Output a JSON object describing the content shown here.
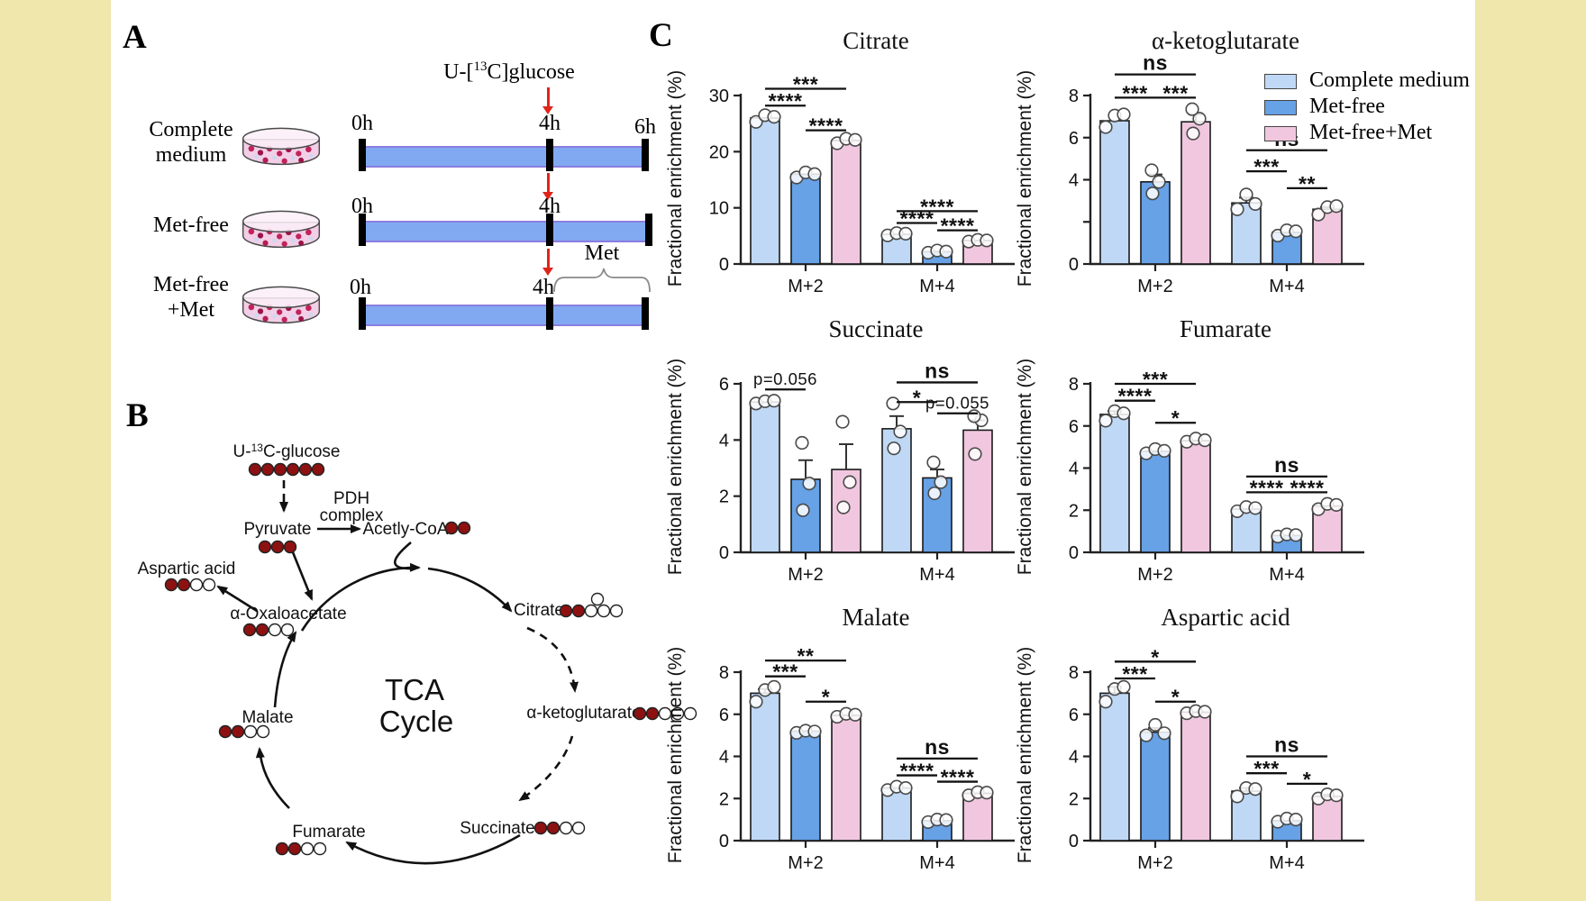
{
  "panels": {
    "a": "A",
    "b": "B",
    "c": "C"
  },
  "colors": {
    "side_band": "#efe7ab",
    "timeline_blue": "#80a9f2",
    "arrow_red": "#e0241b",
    "pdh_orange": "#e87a4d",
    "carbon_labeled": "#8e1111",
    "carbon_unlabeled": "#ffffff",
    "series": [
      "#bfd8f5",
      "#67a1e6",
      "#f1c7df"
    ]
  },
  "panel_a": {
    "glucose": {
      "pre": "U-[",
      "sup": "13",
      "post": "C]glucose"
    },
    "met_bracket_label": "Met",
    "rows": [
      {
        "line1": "Complete",
        "line2": "medium",
        "tick0": "0h",
        "tick1": "4h",
        "tick2": "6h"
      },
      {
        "line1": "Met-free",
        "line2": "",
        "tick0": "0h",
        "tick1": "4h",
        "tick2": ""
      },
      {
        "line1": "Met-free",
        "line2": "+Met",
        "tick0": "0h",
        "tick1": "4h",
        "tick2": ""
      }
    ]
  },
  "panel_b": {
    "glucose": {
      "pre": "U-",
      "sup": "13",
      "post": "C-glucose"
    },
    "pdh_line1": "PDH",
    "pdh_line2": "complex",
    "center_line1": "TCA",
    "center_line2": "Cycle",
    "nodes": {
      "pyruvate": "Pyruvate",
      "acetyl": "Acetly-CoA",
      "aspartate": "Aspartic acid",
      "oaa": "α-Oxaloacetate",
      "malate": "Malate",
      "fumarate": "Fumarate",
      "succinate": "Succinate",
      "akg": "α-ketoglutarate",
      "citrate": "Citrate"
    },
    "carbons": {
      "glucose": [
        1,
        1,
        1,
        1,
        1,
        1
      ],
      "pyruvate": [
        1,
        1,
        1
      ],
      "acetyl": [
        1,
        1
      ],
      "aspartate": [
        1,
        1,
        0,
        0
      ],
      "oaa": [
        1,
        1,
        0,
        0
      ],
      "malate": [
        1,
        1,
        0,
        0
      ],
      "fumarate": [
        1,
        1,
        0,
        0
      ],
      "succinate": [
        1,
        1,
        0,
        0
      ],
      "akg": [
        1,
        1,
        0,
        0,
        0
      ],
      "citrate": [
        1,
        1,
        0,
        0,
        0,
        0
      ]
    }
  },
  "legend": {
    "items": [
      {
        "label": "Complete medium",
        "color": "#bfd8f5"
      },
      {
        "label": "Met-free",
        "color": "#67a1e6"
      },
      {
        "label": "Met-free+Met",
        "color": "#f1c7df"
      }
    ]
  },
  "chart_data": [
    {
      "id": "citrate",
      "type": "bar",
      "title": "Citrate",
      "ylabel": "Fractional enrichment (%)",
      "ymax": 30,
      "yticks": [
        {
          "v": 0,
          "label": "0"
        },
        {
          "v": 10,
          "label": "10"
        },
        {
          "v": 20,
          "label": "20"
        },
        {
          "v": 30,
          "label": "30"
        }
      ],
      "series_names": [
        "Complete medium",
        "Met-free",
        "Met-free+Met"
      ],
      "groups": [
        {
          "label": "M+2",
          "values": [
            26.0,
            16.0,
            22.0
          ],
          "errs": [
            0,
            0,
            0
          ],
          "points": [
            [
              25.3,
              26.5,
              26.2
            ],
            [
              15.4,
              16.3,
              16.0
            ],
            [
              21.5,
              22.3,
              22.1
            ]
          ],
          "sig": [
            {
              "a": 0,
              "b": 1,
              "y": 28.2,
              "label": "****"
            },
            {
              "a": 0,
              "b": 2,
              "y": 31.2,
              "label": "***"
            },
            {
              "a": 1,
              "b": 2,
              "y": 23.8,
              "label": "****"
            }
          ]
        },
        {
          "label": "M+4",
          "values": [
            5.3,
            2.2,
            4.2
          ],
          "errs": [
            0,
            0,
            0
          ],
          "points": [
            [
              5.1,
              5.5,
              5.4
            ],
            [
              2.0,
              2.4,
              2.2
            ],
            [
              4.0,
              4.3,
              4.2
            ]
          ],
          "sig": [
            {
              "a": 0,
              "b": 1,
              "y": 7.3,
              "label": "****"
            },
            {
              "a": 0,
              "b": 2,
              "y": 9.4,
              "label": "****"
            },
            {
              "a": 1,
              "b": 2,
              "y": 6.0,
              "label": "****"
            }
          ]
        }
      ]
    },
    {
      "id": "akg",
      "type": "bar",
      "title": "α-ketoglutarate",
      "ylabel": "Fractional enrichment (%)",
      "ymax": 8,
      "yticks": [
        {
          "v": 0,
          "label": "0"
        },
        {
          "v": 2,
          "label": ""
        },
        {
          "v": 4,
          "label": "4"
        },
        {
          "v": 6,
          "label": "6"
        },
        {
          "v": 8,
          "label": "8"
        }
      ],
      "series_names": [
        "Complete medium",
        "Met-free",
        "Met-free+Met"
      ],
      "groups": [
        {
          "label": "M+2",
          "values": [
            6.8,
            3.9,
            6.75
          ],
          "errs": [
            0,
            0.35,
            0.35
          ],
          "points": [
            [
              6.5,
              7.05,
              7.1
            ],
            [
              3.35,
              3.9,
              4.45
            ],
            [
              6.2,
              6.9,
              7.35
            ]
          ],
          "sig": [
            {
              "a": 0,
              "b": 1,
              "y": 7.9,
              "label": "***"
            },
            {
              "a": 0,
              "b": 2,
              "y": 9.0,
              "label": "ns"
            },
            {
              "a": 1,
              "b": 2,
              "y": 7.9,
              "label": "***"
            }
          ]
        },
        {
          "label": "M+4",
          "values": [
            2.9,
            1.5,
            2.6
          ],
          "errs": [
            0.25,
            0,
            0.1
          ],
          "points": [
            [
              2.6,
              3.3,
              2.85
            ],
            [
              1.35,
              1.6,
              1.55
            ],
            [
              2.35,
              2.7,
              2.75
            ]
          ],
          "sig": [
            {
              "a": 0,
              "b": 1,
              "y": 4.4,
              "label": "***"
            },
            {
              "a": 0,
              "b": 2,
              "y": 5.4,
              "label": "ns"
            },
            {
              "a": 1,
              "b": 2,
              "y": 3.6,
              "label": "**"
            }
          ]
        }
      ]
    },
    {
      "id": "succinate",
      "type": "bar",
      "title": "Succinate",
      "ylabel": "Fractional enrichment (%)",
      "ymax": 6,
      "yticks": [
        {
          "v": 0,
          "label": "0"
        },
        {
          "v": 2,
          "label": "2"
        },
        {
          "v": 4,
          "label": "4"
        },
        {
          "v": 6,
          "label": "6"
        }
      ],
      "series_names": [
        "Complete medium",
        "Met-free",
        "Met-free+Met"
      ],
      "groups": [
        {
          "label": "M+2",
          "values": [
            5.35,
            2.6,
            2.95
          ],
          "errs": [
            0,
            0.68,
            0.9
          ],
          "points": [
            [
              5.3,
              5.38,
              5.4
            ],
            [
              1.5,
              2.45,
              3.9
            ],
            [
              1.6,
              2.5,
              4.65
            ]
          ],
          "sig": [
            {
              "a": 0,
              "b": 1,
              "y": 5.8,
              "label": "p=0.056"
            }
          ]
        },
        {
          "label": "M+4",
          "values": [
            4.4,
            2.65,
            4.35
          ],
          "errs": [
            0.45,
            0.3,
            0.35
          ],
          "points": [
            [
              3.7,
              4.3,
              5.3
            ],
            [
              2.1,
              2.5,
              3.2
            ],
            [
              3.5,
              4.7,
              4.85
            ]
          ],
          "sig": [
            {
              "a": 0,
              "b": 1,
              "y": 5.35,
              "label": "*"
            },
            {
              "a": 0,
              "b": 2,
              "y": 6.05,
              "label": "ns"
            },
            {
              "a": 1,
              "b": 2,
              "y": 4.95,
              "label": "p=0.055"
            }
          ]
        }
      ]
    },
    {
      "id": "fumarate",
      "type": "bar",
      "title": "Fumarate",
      "ylabel": "Fractional enrichment (%)",
      "ymax": 8,
      "yticks": [
        {
          "v": 0,
          "label": "0"
        },
        {
          "v": 2,
          "label": "2"
        },
        {
          "v": 4,
          "label": "4"
        },
        {
          "v": 6,
          "label": "6"
        },
        {
          "v": 8,
          "label": "8"
        }
      ],
      "series_names": [
        "Complete medium",
        "Met-free",
        "Met-free+Met"
      ],
      "groups": [
        {
          "label": "M+2",
          "values": [
            6.55,
            4.8,
            5.3
          ],
          "errs": [
            0.15,
            0,
            0
          ],
          "points": [
            [
              6.25,
              6.7,
              6.6
            ],
            [
              4.7,
              4.9,
              4.82
            ],
            [
              5.25,
              5.4,
              5.32
            ]
          ],
          "sig": [
            {
              "a": 0,
              "b": 1,
              "y": 7.2,
              "label": "****"
            },
            {
              "a": 0,
              "b": 2,
              "y": 8.0,
              "label": "***"
            },
            {
              "a": 1,
              "b": 2,
              "y": 6.15,
              "label": "*"
            }
          ]
        },
        {
          "label": "M+4",
          "values": [
            2.05,
            0.8,
            2.2
          ],
          "errs": [
            0,
            0,
            0
          ],
          "points": [
            [
              1.95,
              2.15,
              2.1
            ],
            [
              0.75,
              0.85,
              0.82
            ],
            [
              2.05,
              2.3,
              2.25
            ]
          ],
          "sig": [
            {
              "a": 0,
              "b": 1,
              "y": 2.85,
              "label": "****"
            },
            {
              "a": 0,
              "b": 2,
              "y": 3.6,
              "label": "ns"
            },
            {
              "a": 1,
              "b": 2,
              "y": 2.85,
              "label": "****"
            }
          ]
        }
      ]
    },
    {
      "id": "malate",
      "type": "bar",
      "title": "Malate",
      "ylabel": "Fractional enrichment (%)",
      "ymax": 8,
      "yticks": [
        {
          "v": 0,
          "label": "0"
        },
        {
          "v": 2,
          "label": "2"
        },
        {
          "v": 4,
          "label": "4"
        },
        {
          "v": 6,
          "label": "6"
        },
        {
          "v": 8,
          "label": "8"
        }
      ],
      "series_names": [
        "Complete medium",
        "Met-free",
        "Met-free+Met"
      ],
      "groups": [
        {
          "label": "M+2",
          "values": [
            7.0,
            5.2,
            5.95
          ],
          "errs": [
            0.2,
            0,
            0
          ],
          "points": [
            [
              6.6,
              7.15,
              7.3
            ],
            [
              5.12,
              5.22,
              5.18
            ],
            [
              5.88,
              6.02,
              5.98
            ]
          ],
          "sig": [
            {
              "a": 0,
              "b": 1,
              "y": 7.8,
              "label": "***"
            },
            {
              "a": 0,
              "b": 2,
              "y": 8.55,
              "label": "**"
            },
            {
              "a": 1,
              "b": 2,
              "y": 6.6,
              "label": "*"
            }
          ]
        },
        {
          "label": "M+4",
          "values": [
            2.5,
            0.95,
            2.25
          ],
          "errs": [
            0,
            0,
            0
          ],
          "points": [
            [
              2.4,
              2.56,
              2.5
            ],
            [
              0.88,
              1.0,
              0.98
            ],
            [
              2.15,
              2.3,
              2.28
            ]
          ],
          "sig": [
            {
              "a": 0,
              "b": 1,
              "y": 3.1,
              "label": "****"
            },
            {
              "a": 0,
              "b": 2,
              "y": 3.9,
              "label": "ns"
            },
            {
              "a": 1,
              "b": 2,
              "y": 2.8,
              "label": "****"
            }
          ]
        }
      ]
    },
    {
      "id": "aspartate",
      "type": "bar",
      "title": "Aspartic acid",
      "ylabel": "Fractional enrichment (%)",
      "ymax": 8,
      "yticks": [
        {
          "v": 0,
          "label": "0"
        },
        {
          "v": 2,
          "label": "2"
        },
        {
          "v": 4,
          "label": "4"
        },
        {
          "v": 6,
          "label": "6"
        },
        {
          "v": 8,
          "label": "8"
        }
      ],
      "series_names": [
        "Complete medium",
        "Met-free",
        "Met-free+Met"
      ],
      "groups": [
        {
          "label": "M+2",
          "values": [
            7.0,
            5.15,
            6.1
          ],
          "errs": [
            0.3,
            0.2,
            0
          ],
          "points": [
            [
              6.6,
              7.2,
              7.3
            ],
            [
              5.0,
              5.5,
              5.1
            ],
            [
              6.05,
              6.15,
              6.12
            ]
          ],
          "sig": [
            {
              "a": 0,
              "b": 1,
              "y": 7.7,
              "label": "***"
            },
            {
              "a": 0,
              "b": 2,
              "y": 8.5,
              "label": "*"
            },
            {
              "a": 1,
              "b": 2,
              "y": 6.6,
              "label": "*"
            }
          ]
        },
        {
          "label": "M+4",
          "values": [
            2.35,
            0.95,
            2.1
          ],
          "errs": [
            0.15,
            0,
            0.08
          ],
          "points": [
            [
              2.1,
              2.5,
              2.45
            ],
            [
              0.9,
              1.05,
              1.0
            ],
            [
              2.0,
              2.2,
              2.15
            ]
          ],
          "sig": [
            {
              "a": 0,
              "b": 1,
              "y": 3.2,
              "label": "***"
            },
            {
              "a": 0,
              "b": 2,
              "y": 4.0,
              "label": "ns"
            },
            {
              "a": 1,
              "b": 2,
              "y": 2.7,
              "label": "*"
            }
          ]
        }
      ]
    }
  ]
}
